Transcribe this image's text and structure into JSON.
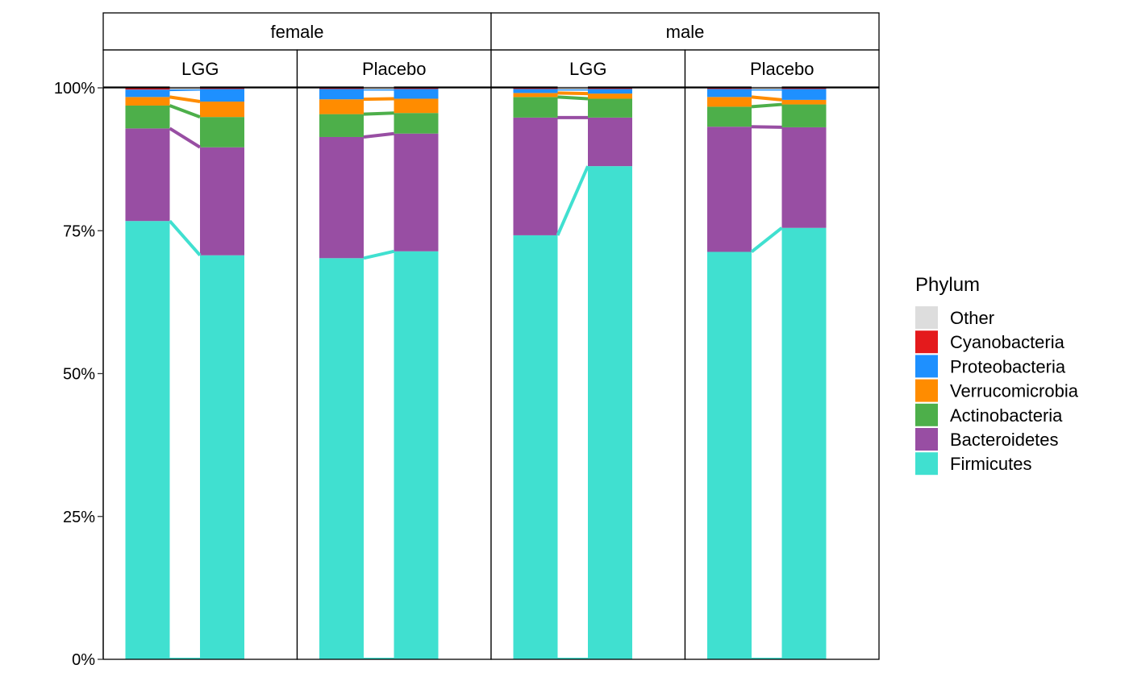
{
  "chart_data": {
    "type": "bar",
    "subtype": "stacked-percent-with-connectors",
    "title": "",
    "xlabel": "",
    "ylabel": "",
    "ylim": [
      0,
      100
    ],
    "yticks": [
      {
        "value": 0,
        "label": "0%"
      },
      {
        "value": 25,
        "label": "25%"
      },
      {
        "value": 50,
        "label": "50%"
      },
      {
        "value": 75,
        "label": "75%"
      },
      {
        "value": 100,
        "label": "100%"
      }
    ],
    "grid": false,
    "legend": {
      "title": "Phylum",
      "position": "right",
      "items": [
        {
          "name": "Other",
          "color": "#DDDDDD"
        },
        {
          "name": "Cyanobacteria",
          "color": "#E41A1C"
        },
        {
          "name": "Proteobacteria",
          "color": "#1E90FF"
        },
        {
          "name": "Verrucomicrobia",
          "color": "#FF8C00"
        },
        {
          "name": "Actinobacteria",
          "color": "#4DAF4A"
        },
        {
          "name": "Bacteroidetes",
          "color": "#984EA3"
        },
        {
          "name": "Firmicutes",
          "color": "#40E0D0"
        }
      ]
    },
    "stack_order_bottom_to_top": [
      "Firmicutes",
      "Bacteroidetes",
      "Actinobacteria",
      "Verrucomicrobia",
      "Proteobacteria",
      "Cyanobacteria",
      "Other"
    ],
    "facets": [
      {
        "sex": "female",
        "treatment": "LGG",
        "bars": [
          {
            "Firmicutes": 76.7,
            "Bacteroidetes": 16.2,
            "Actinobacteria": 4.0,
            "Verrucomicrobia": 1.5,
            "Proteobacteria": 1.3,
            "Cyanobacteria": 0.3,
            "Other": 0.0
          },
          {
            "Firmicutes": 70.7,
            "Bacteroidetes": 18.9,
            "Actinobacteria": 5.3,
            "Verrucomicrobia": 2.7,
            "Proteobacteria": 2.2,
            "Cyanobacteria": 0.2,
            "Other": 0.0
          }
        ]
      },
      {
        "sex": "female",
        "treatment": "Placebo",
        "bars": [
          {
            "Firmicutes": 70.2,
            "Bacteroidetes": 21.2,
            "Actinobacteria": 4.0,
            "Verrucomicrobia": 2.6,
            "Proteobacteria": 1.8,
            "Cyanobacteria": 0.2,
            "Other": 0.0
          },
          {
            "Firmicutes": 71.4,
            "Bacteroidetes": 20.6,
            "Actinobacteria": 3.6,
            "Verrucomicrobia": 2.5,
            "Proteobacteria": 1.7,
            "Cyanobacteria": 0.2,
            "Other": 0.0
          }
        ]
      },
      {
        "sex": "male",
        "treatment": "LGG",
        "bars": [
          {
            "Firmicutes": 74.2,
            "Bacteroidetes": 20.6,
            "Actinobacteria": 3.6,
            "Verrucomicrobia": 0.7,
            "Proteobacteria": 0.7,
            "Cyanobacteria": 0.2,
            "Other": 0.0
          },
          {
            "Firmicutes": 86.3,
            "Bacteroidetes": 8.5,
            "Actinobacteria": 3.3,
            "Verrucomicrobia": 0.9,
            "Proteobacteria": 0.8,
            "Cyanobacteria": 0.2,
            "Other": 0.0
          }
        ]
      },
      {
        "sex": "male",
        "treatment": "Placebo",
        "bars": [
          {
            "Firmicutes": 71.3,
            "Bacteroidetes": 21.9,
            "Actinobacteria": 3.5,
            "Verrucomicrobia": 1.7,
            "Proteobacteria": 1.4,
            "Cyanobacteria": 0.2,
            "Other": 0.0
          },
          {
            "Firmicutes": 75.5,
            "Bacteroidetes": 17.6,
            "Actinobacteria": 4.0,
            "Verrucomicrobia": 0.8,
            "Proteobacteria": 1.9,
            "Cyanobacteria": 0.2,
            "Other": 0.0
          }
        ]
      }
    ]
  }
}
